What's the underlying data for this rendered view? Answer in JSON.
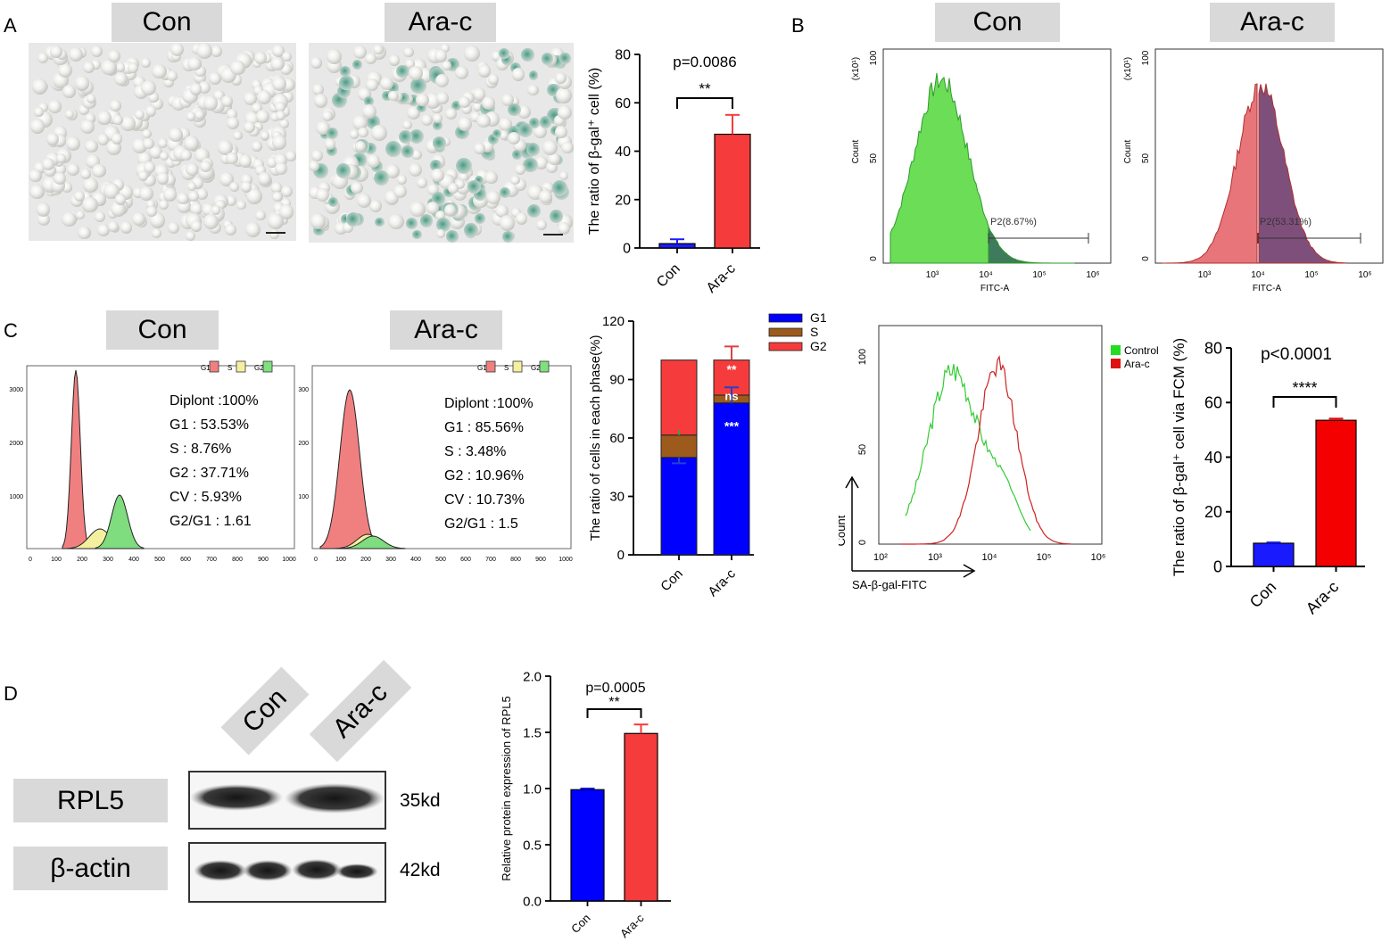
{
  "panels": {
    "A": {
      "letter": "A",
      "image_labels": [
        "Con",
        "Ara-c"
      ],
      "chart_title": "p=0.0086",
      "sig": "**"
    },
    "B": {
      "letter": "B",
      "hist_labels": [
        "Con",
        "Ara-c"
      ],
      "count_label": "Count",
      "x_label": "FITC-A",
      "scale_label": "(x10¹)",
      "gate_con": "P2(8.67%)",
      "gate_arac": "P2(53.31%)",
      "overlay_y_label": "Count",
      "overlay_x_label": "SA-β-gal-FITC",
      "legend": [
        "Control",
        "Ara-c"
      ],
      "chart_title": "p<0.0001",
      "sig": "****"
    },
    "C": {
      "letter": "C",
      "cycle_labels": [
        "Con",
        "Ara-c"
      ],
      "con_stats": [
        "Diplont :100%",
        "G1 : 53.53%",
        "S : 8.76%",
        "G2 : 37.71%",
        "CV : 5.93%",
        "G2/G1 : 1.61"
      ],
      "arac_stats": [
        "Diplont :100%",
        "G1 : 85.56%",
        "S : 3.48%",
        "G2 : 10.96%",
        "CV : 10.73%",
        "G2/G1 : 1.5"
      ],
      "mini_legend": [
        "G1",
        "S",
        "G2"
      ],
      "sig_labels": [
        "**",
        "ns",
        "***"
      ]
    },
    "D": {
      "letter": "D",
      "lane_labels": [
        "Con",
        "Ara-c"
      ],
      "proteins": [
        "RPL5",
        "β-actin"
      ],
      "sizes": [
        "35kd",
        "42kd"
      ],
      "chart_title": "p=0.0005",
      "sig": "**"
    }
  },
  "chart_data": [
    {
      "id": "A-bar",
      "type": "bar",
      "categories": [
        "Con",
        "Ara-c"
      ],
      "values": [
        1.8,
        47
      ],
      "errors": [
        1.8,
        8
      ],
      "ylabel": "The ratio of β-gal⁺ cell (%)",
      "ylim": [
        0,
        80
      ],
      "yticks": [
        0,
        20,
        40,
        60,
        80
      ],
      "colors": [
        "#1a1aff",
        "#f53b3b"
      ]
    },
    {
      "id": "B-con-hist",
      "type": "area",
      "xlabel": "FITC-A",
      "ylabel": "Count",
      "yticks": [
        0,
        50,
        100
      ],
      "xticks": [
        "10³",
        "10⁴",
        "10⁵",
        "10⁶"
      ]
    },
    {
      "id": "B-arac-hist",
      "type": "area",
      "xlabel": "FITC-A",
      "ylabel": "Count",
      "yticks": [
        0,
        50,
        100
      ],
      "xticks": [
        "10³",
        "10⁴",
        "10⁵",
        "10⁶"
      ]
    },
    {
      "id": "B-overlay",
      "type": "line",
      "xlabel": "SA-β-gal-FITC",
      "ylabel": "Count",
      "yticks": [
        0,
        50,
        100
      ],
      "xticks": [
        "10²",
        "10³",
        "10⁴",
        "10⁵",
        "10⁶"
      ],
      "series": [
        {
          "name": "Control"
        },
        {
          "name": "Ara-c"
        }
      ]
    },
    {
      "id": "B-bar",
      "type": "bar",
      "categories": [
        "Con",
        "Ara-c"
      ],
      "values": [
        8.5,
        53.5
      ],
      "errors": [
        0.3,
        0.6
      ],
      "ylabel": "The ratio of β-gal⁺ cell via FCM (%)",
      "ylim": [
        0,
        80
      ],
      "yticks": [
        0,
        20,
        40,
        60,
        80
      ],
      "colors": [
        "#1a1aff",
        "#f50000"
      ]
    },
    {
      "id": "C-cycle-con",
      "type": "area",
      "xticks": [
        0,
        100,
        200,
        300,
        400,
        500,
        600,
        700,
        800,
        900,
        1000
      ],
      "yticks": [
        1000,
        2000,
        3000
      ]
    },
    {
      "id": "C-cycle-arac",
      "type": "area",
      "xticks": [
        0,
        100,
        200,
        300,
        400,
        500,
        600,
        700,
        800,
        900,
        1000
      ],
      "yticks": [
        100,
        200,
        300
      ]
    },
    {
      "id": "C-stacked",
      "type": "bar",
      "stacked": true,
      "categories": [
        "Con",
        "Ara-c"
      ],
      "series": [
        {
          "name": "G1",
          "values": [
            50,
            78
          ],
          "color": "#0000ff"
        },
        {
          "name": "S",
          "values": [
            11.5,
            4
          ],
          "color": "#9c5a1c"
        },
        {
          "name": "G2",
          "values": [
            38.5,
            18
          ],
          "color": "#f53b3b"
        }
      ],
      "ylabel": "The ratio of cells in each phase(%)",
      "ylim": [
        0,
        120
      ],
      "yticks": [
        0,
        30,
        60,
        90,
        120
      ]
    },
    {
      "id": "D-bar",
      "type": "bar",
      "categories": [
        "Con",
        "Ara-c"
      ],
      "values": [
        0.99,
        1.49
      ],
      "errors": [
        0.01,
        0.08
      ],
      "ylabel": "Relative protein expression of RPL5",
      "ylim": [
        0,
        2.0
      ],
      "yticks": [
        "0.0",
        "0.5",
        "1.0",
        "1.5",
        "2.0"
      ],
      "colors": [
        "#0000ff",
        "#f53b3b"
      ]
    }
  ]
}
